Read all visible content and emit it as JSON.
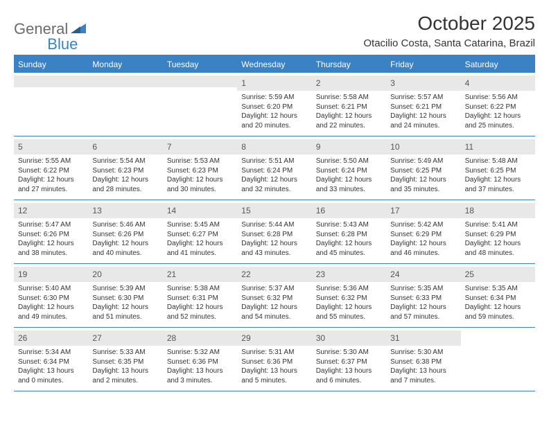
{
  "logo": {
    "part1": "General",
    "part2": "Blue"
  },
  "title": "October 2025",
  "location": "Otacilio Costa, Santa Catarina, Brazil",
  "colors": {
    "brand_blue": "#3b82c4",
    "header_bg": "#3b82c4",
    "daynum_bg": "#e8e8e8",
    "text": "#333333",
    "logo_gray": "#6b6b6b"
  },
  "weekdays": [
    "Sunday",
    "Monday",
    "Tuesday",
    "Wednesday",
    "Thursday",
    "Friday",
    "Saturday"
  ],
  "weeks": [
    [
      {
        "n": "",
        "sr": "",
        "ss": "",
        "dl": ""
      },
      {
        "n": "",
        "sr": "",
        "ss": "",
        "dl": ""
      },
      {
        "n": "",
        "sr": "",
        "ss": "",
        "dl": ""
      },
      {
        "n": "1",
        "sr": "Sunrise: 5:59 AM",
        "ss": "Sunset: 6:20 PM",
        "dl": "Daylight: 12 hours and 20 minutes."
      },
      {
        "n": "2",
        "sr": "Sunrise: 5:58 AM",
        "ss": "Sunset: 6:21 PM",
        "dl": "Daylight: 12 hours and 22 minutes."
      },
      {
        "n": "3",
        "sr": "Sunrise: 5:57 AM",
        "ss": "Sunset: 6:21 PM",
        "dl": "Daylight: 12 hours and 24 minutes."
      },
      {
        "n": "4",
        "sr": "Sunrise: 5:56 AM",
        "ss": "Sunset: 6:22 PM",
        "dl": "Daylight: 12 hours and 25 minutes."
      }
    ],
    [
      {
        "n": "5",
        "sr": "Sunrise: 5:55 AM",
        "ss": "Sunset: 6:22 PM",
        "dl": "Daylight: 12 hours and 27 minutes."
      },
      {
        "n": "6",
        "sr": "Sunrise: 5:54 AM",
        "ss": "Sunset: 6:23 PM",
        "dl": "Daylight: 12 hours and 28 minutes."
      },
      {
        "n": "7",
        "sr": "Sunrise: 5:53 AM",
        "ss": "Sunset: 6:23 PM",
        "dl": "Daylight: 12 hours and 30 minutes."
      },
      {
        "n": "8",
        "sr": "Sunrise: 5:51 AM",
        "ss": "Sunset: 6:24 PM",
        "dl": "Daylight: 12 hours and 32 minutes."
      },
      {
        "n": "9",
        "sr": "Sunrise: 5:50 AM",
        "ss": "Sunset: 6:24 PM",
        "dl": "Daylight: 12 hours and 33 minutes."
      },
      {
        "n": "10",
        "sr": "Sunrise: 5:49 AM",
        "ss": "Sunset: 6:25 PM",
        "dl": "Daylight: 12 hours and 35 minutes."
      },
      {
        "n": "11",
        "sr": "Sunrise: 5:48 AM",
        "ss": "Sunset: 6:25 PM",
        "dl": "Daylight: 12 hours and 37 minutes."
      }
    ],
    [
      {
        "n": "12",
        "sr": "Sunrise: 5:47 AM",
        "ss": "Sunset: 6:26 PM",
        "dl": "Daylight: 12 hours and 38 minutes."
      },
      {
        "n": "13",
        "sr": "Sunrise: 5:46 AM",
        "ss": "Sunset: 6:26 PM",
        "dl": "Daylight: 12 hours and 40 minutes."
      },
      {
        "n": "14",
        "sr": "Sunrise: 5:45 AM",
        "ss": "Sunset: 6:27 PM",
        "dl": "Daylight: 12 hours and 41 minutes."
      },
      {
        "n": "15",
        "sr": "Sunrise: 5:44 AM",
        "ss": "Sunset: 6:28 PM",
        "dl": "Daylight: 12 hours and 43 minutes."
      },
      {
        "n": "16",
        "sr": "Sunrise: 5:43 AM",
        "ss": "Sunset: 6:28 PM",
        "dl": "Daylight: 12 hours and 45 minutes."
      },
      {
        "n": "17",
        "sr": "Sunrise: 5:42 AM",
        "ss": "Sunset: 6:29 PM",
        "dl": "Daylight: 12 hours and 46 minutes."
      },
      {
        "n": "18",
        "sr": "Sunrise: 5:41 AM",
        "ss": "Sunset: 6:29 PM",
        "dl": "Daylight: 12 hours and 48 minutes."
      }
    ],
    [
      {
        "n": "19",
        "sr": "Sunrise: 5:40 AM",
        "ss": "Sunset: 6:30 PM",
        "dl": "Daylight: 12 hours and 49 minutes."
      },
      {
        "n": "20",
        "sr": "Sunrise: 5:39 AM",
        "ss": "Sunset: 6:30 PM",
        "dl": "Daylight: 12 hours and 51 minutes."
      },
      {
        "n": "21",
        "sr": "Sunrise: 5:38 AM",
        "ss": "Sunset: 6:31 PM",
        "dl": "Daylight: 12 hours and 52 minutes."
      },
      {
        "n": "22",
        "sr": "Sunrise: 5:37 AM",
        "ss": "Sunset: 6:32 PM",
        "dl": "Daylight: 12 hours and 54 minutes."
      },
      {
        "n": "23",
        "sr": "Sunrise: 5:36 AM",
        "ss": "Sunset: 6:32 PM",
        "dl": "Daylight: 12 hours and 55 minutes."
      },
      {
        "n": "24",
        "sr": "Sunrise: 5:35 AM",
        "ss": "Sunset: 6:33 PM",
        "dl": "Daylight: 12 hours and 57 minutes."
      },
      {
        "n": "25",
        "sr": "Sunrise: 5:35 AM",
        "ss": "Sunset: 6:34 PM",
        "dl": "Daylight: 12 hours and 59 minutes."
      }
    ],
    [
      {
        "n": "26",
        "sr": "Sunrise: 5:34 AM",
        "ss": "Sunset: 6:34 PM",
        "dl": "Daylight: 13 hours and 0 minutes."
      },
      {
        "n": "27",
        "sr": "Sunrise: 5:33 AM",
        "ss": "Sunset: 6:35 PM",
        "dl": "Daylight: 13 hours and 2 minutes."
      },
      {
        "n": "28",
        "sr": "Sunrise: 5:32 AM",
        "ss": "Sunset: 6:36 PM",
        "dl": "Daylight: 13 hours and 3 minutes."
      },
      {
        "n": "29",
        "sr": "Sunrise: 5:31 AM",
        "ss": "Sunset: 6:36 PM",
        "dl": "Daylight: 13 hours and 5 minutes."
      },
      {
        "n": "30",
        "sr": "Sunrise: 5:30 AM",
        "ss": "Sunset: 6:37 PM",
        "dl": "Daylight: 13 hours and 6 minutes."
      },
      {
        "n": "31",
        "sr": "Sunrise: 5:30 AM",
        "ss": "Sunset: 6:38 PM",
        "dl": "Daylight: 13 hours and 7 minutes."
      },
      {
        "n": "",
        "sr": "",
        "ss": "",
        "dl": ""
      }
    ]
  ]
}
